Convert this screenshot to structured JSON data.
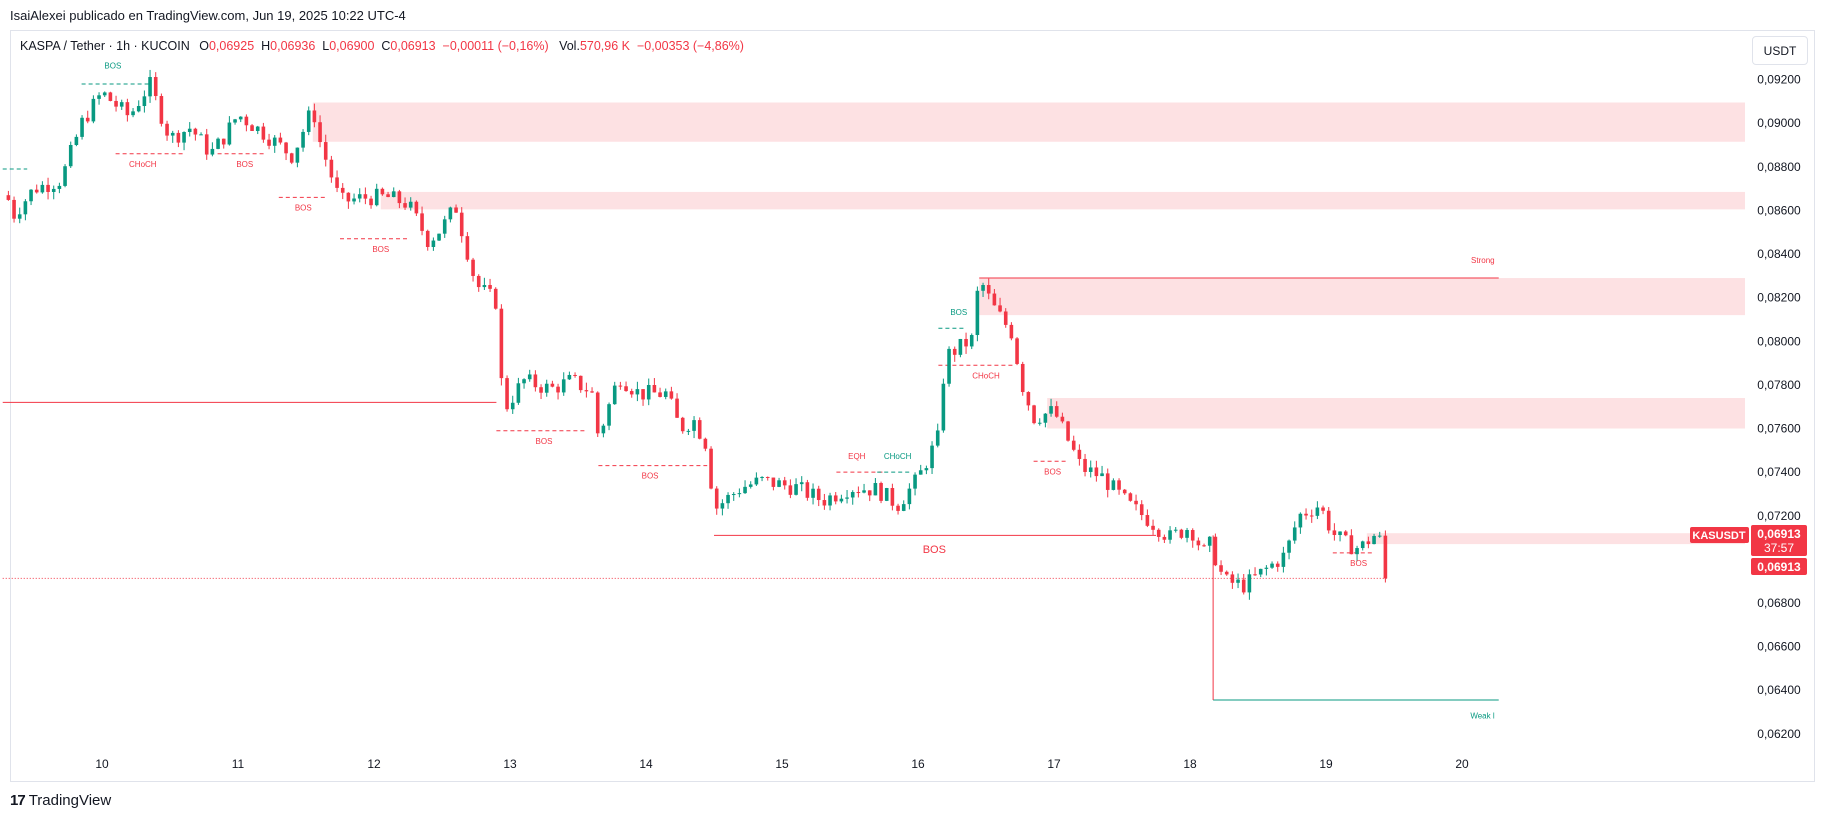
{
  "header": {
    "published": "IsaiAlexei publicado en TradingView.com, Jun 19, 2025 10:22 UTC-4"
  },
  "legend": {
    "symbol": "KASPA / Tether · 1h · KUCOIN",
    "o_label": "O",
    "o_value": "0,06925",
    "h_label": "H",
    "h_value": "0,06936",
    "l_label": "L",
    "l_value": "0,06900",
    "c_label": "C",
    "c_value": "0,06913",
    "change": "−0,00011 (−0,16%)",
    "vol_label": "Vol.",
    "vol_value": "570,96 K",
    "vol_change": "−0,00353 (−4,86%)"
  },
  "currency_button": "USDT",
  "footer": {
    "brand": "TradingView",
    "logo": "17"
  },
  "colors": {
    "up": "#089981",
    "down": "#f23645",
    "zone": "#fde1e3",
    "grid": "#e0e3eb"
  },
  "chart_data": {
    "type": "candlestick",
    "x_ticks": [
      "10",
      "11",
      "12",
      "13",
      "14",
      "15",
      "16",
      "17",
      "18",
      "19",
      "20"
    ],
    "y_ticks": [
      "0,09200",
      "0,09000",
      "0,08800",
      "0,08600",
      "0,08400",
      "0,08200",
      "0,08000",
      "0,07800",
      "0,07600",
      "0,07400",
      "0,07200",
      "0,06800",
      "0,06600",
      "0,06400",
      "0,06200"
    ],
    "ylim": [
      0.0608,
      0.094
    ],
    "price_label": {
      "symbol": "KASUSDT",
      "price": "0,06913",
      "countdown": "37:57"
    },
    "last_price_label": "0,06913",
    "anchors": [
      [
        9.3,
        0.0867
      ],
      [
        9.35,
        0.0858
      ],
      [
        9.5,
        0.087
      ],
      [
        9.7,
        0.0874
      ],
      [
        9.85,
        0.09
      ],
      [
        10.0,
        0.0914
      ],
      [
        10.2,
        0.0903
      ],
      [
        10.35,
        0.0918
      ],
      [
        10.5,
        0.0893
      ],
      [
        10.65,
        0.0898
      ],
      [
        10.8,
        0.0886
      ],
      [
        10.9,
        0.0894
      ],
      [
        11.0,
        0.0904
      ],
      [
        11.2,
        0.0895
      ],
      [
        11.4,
        0.0885
      ],
      [
        11.55,
        0.0907
      ],
      [
        11.6,
        0.0892
      ],
      [
        11.75,
        0.0864
      ],
      [
        11.95,
        0.0866
      ],
      [
        12.1,
        0.0866
      ],
      [
        12.25,
        0.0863
      ],
      [
        12.4,
        0.0846
      ],
      [
        12.5,
        0.0852
      ],
      [
        12.6,
        0.0862
      ],
      [
        12.75,
        0.0826
      ],
      [
        12.9,
        0.0818
      ],
      [
        12.95,
        0.0768
      ],
      [
        13.1,
        0.0782
      ],
      [
        13.3,
        0.0778
      ],
      [
        13.45,
        0.0782
      ],
      [
        13.6,
        0.0777
      ],
      [
        13.65,
        0.0756
      ],
      [
        13.8,
        0.0784
      ],
      [
        13.95,
        0.0776
      ],
      [
        14.15,
        0.0776
      ],
      [
        14.25,
        0.076
      ],
      [
        14.35,
        0.0764
      ],
      [
        14.45,
        0.0752
      ],
      [
        14.5,
        0.0723
      ],
      [
        14.7,
        0.0733
      ],
      [
        14.85,
        0.0736
      ],
      [
        15.1,
        0.0733
      ],
      [
        15.3,
        0.0727
      ],
      [
        15.5,
        0.0733
      ],
      [
        15.7,
        0.0732
      ],
      [
        15.85,
        0.0725
      ],
      [
        16.0,
        0.0737
      ],
      [
        16.15,
        0.0756
      ],
      [
        16.2,
        0.0793
      ],
      [
        16.4,
        0.0801
      ],
      [
        16.45,
        0.0829
      ],
      [
        16.55,
        0.0816
      ],
      [
        16.7,
        0.0803
      ],
      [
        16.75,
        0.0783
      ],
      [
        16.85,
        0.0765
      ],
      [
        17.0,
        0.0768
      ],
      [
        17.2,
        0.0742
      ],
      [
        17.35,
        0.0738
      ],
      [
        17.55,
        0.0725
      ],
      [
        17.7,
        0.0718
      ],
      [
        17.85,
        0.071
      ],
      [
        18.0,
        0.0715
      ],
      [
        18.1,
        0.0703
      ],
      [
        18.15,
        0.0707
      ],
      [
        18.25,
        0.069
      ],
      [
        18.4,
        0.0688
      ],
      [
        18.55,
        0.0695
      ],
      [
        18.7,
        0.0702
      ],
      [
        18.8,
        0.072
      ],
      [
        18.95,
        0.0725
      ],
      [
        19.05,
        0.0712
      ],
      [
        19.15,
        0.0707
      ],
      [
        19.25,
        0.0705
      ],
      [
        19.35,
        0.0711
      ],
      [
        19.45,
        0.0706
      ],
      [
        19.5,
        0.0691
      ]
    ],
    "zones": [
      {
        "x0": 11.55,
        "top": 0.09095,
        "bottom": 0.08915
      },
      {
        "x0": 12.05,
        "top": 0.08685,
        "bottom": 0.08605
      },
      {
        "x0": 16.45,
        "top": 0.0829,
        "bottom": 0.0812
      },
      {
        "x0": 16.95,
        "top": 0.0774,
        "bottom": 0.076
      },
      {
        "x0": 19.3,
        "top": 0.0712,
        "bottom": 0.0707
      }
    ],
    "lines": [
      {
        "x0": 9.27,
        "x1": 12.9,
        "y": 0.0772,
        "color": "down",
        "dash": false
      },
      {
        "x0": 14.5,
        "x1": 17.75,
        "y": 0.0711,
        "color": "down",
        "dash": false
      },
      {
        "x0": 16.45,
        "x1": 20.27,
        "y": 0.0829,
        "color": "down",
        "dash": false
      },
      {
        "x0": 18.17,
        "x1": 20.27,
        "y": 0.06355,
        "color": "up",
        "dash": false
      },
      {
        "x0": 9.27,
        "x1": 19.45,
        "y": 0.06913,
        "color": "down",
        "dash": true
      }
    ],
    "vlines": [
      {
        "x": 18.17,
        "y0": 0.0711,
        "y1": 0.06355,
        "color": "down"
      }
    ],
    "structure_lines": [
      {
        "x0": 9.27,
        "x1": 9.45,
        "y": 0.0879,
        "color": "up"
      },
      {
        "x0": 9.85,
        "x1": 10.35,
        "y": 0.0918,
        "color": "up"
      },
      {
        "x0": 10.1,
        "x1": 10.6,
        "y": 0.0886,
        "color": "down"
      },
      {
        "x0": 10.85,
        "x1": 11.2,
        "y": 0.0886,
        "color": "down"
      },
      {
        "x0": 11.3,
        "x1": 11.65,
        "y": 0.0866,
        "color": "down"
      },
      {
        "x0": 11.75,
        "x1": 12.25,
        "y": 0.0847,
        "color": "down"
      },
      {
        "x0": 12.9,
        "x1": 13.55,
        "y": 0.0759,
        "color": "down"
      },
      {
        "x0": 13.65,
        "x1": 14.45,
        "y": 0.0743,
        "color": "down"
      },
      {
        "x0": 15.4,
        "x1": 15.75,
        "y": 0.074,
        "color": "down"
      },
      {
        "x0": 15.7,
        "x1": 15.95,
        "y": 0.074,
        "color": "up"
      },
      {
        "x0": 16.15,
        "x1": 16.35,
        "y": 0.0806,
        "color": "up"
      },
      {
        "x0": 16.15,
        "x1": 16.7,
        "y": 0.0789,
        "color": "down"
      },
      {
        "x0": 16.85,
        "x1": 17.1,
        "y": 0.0745,
        "color": "down"
      },
      {
        "x0": 19.05,
        "x1": 19.35,
        "y": 0.0703,
        "color": "down"
      }
    ],
    "annotations": [
      {
        "text": "BOS",
        "x": 10.08,
        "y": 0.0925,
        "color": "up",
        "size": "s"
      },
      {
        "text": "CHoCH",
        "x": 10.3,
        "y": 0.088,
        "color": "down",
        "size": "s"
      },
      {
        "text": "BOS",
        "x": 11.05,
        "y": 0.088,
        "color": "down",
        "size": "s"
      },
      {
        "text": "BOS",
        "x": 11.48,
        "y": 0.086,
        "color": "down",
        "size": "s"
      },
      {
        "text": "BOS",
        "x": 12.05,
        "y": 0.0841,
        "color": "down",
        "size": "s"
      },
      {
        "text": "BOS",
        "x": 13.25,
        "y": 0.0753,
        "color": "down",
        "size": "s"
      },
      {
        "text": "BOS",
        "x": 14.03,
        "y": 0.0737,
        "color": "down",
        "size": "s"
      },
      {
        "text": "EQH",
        "x": 15.55,
        "y": 0.0746,
        "color": "down",
        "size": "s"
      },
      {
        "text": "CHoCH",
        "x": 15.85,
        "y": 0.0746,
        "color": "up",
        "size": "s"
      },
      {
        "text": "BOS",
        "x": 16.3,
        "y": 0.0812,
        "color": "up",
        "size": "s"
      },
      {
        "text": "CHoCH",
        "x": 16.5,
        "y": 0.0783,
        "color": "down",
        "size": "s"
      },
      {
        "text": "BOS",
        "x": 16.99,
        "y": 0.0739,
        "color": "down",
        "size": "s"
      },
      {
        "text": "BOS",
        "x": 19.24,
        "y": 0.0697,
        "color": "down",
        "size": "s"
      },
      {
        "text": "BOS",
        "x": 16.12,
        "y": 0.0703,
        "color": "down",
        "size": "l"
      },
      {
        "text": "Strong",
        "x": 20.24,
        "y": 0.0836,
        "color": "down",
        "size": "s"
      },
      {
        "text": "Weak l",
        "x": 20.24,
        "y": 0.0627,
        "color": "up",
        "size": "s"
      }
    ]
  }
}
